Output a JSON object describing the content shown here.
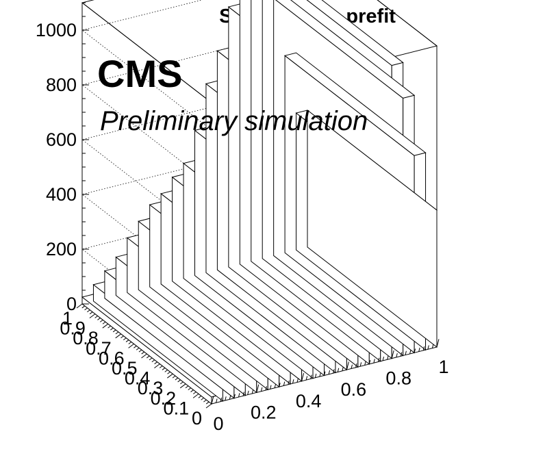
{
  "chart_data": {
    "type": "bar3d",
    "title": "Signal, pass, prefit",
    "annotations": {
      "experiment": "CMS",
      "status": "Preliminary simulation"
    },
    "x_axis": {
      "range": [
        0,
        1
      ],
      "tick_labels": [
        "0",
        "0.2",
        "0.4",
        "0.6",
        "0.8",
        "1"
      ]
    },
    "y_axis": {
      "range": [
        0,
        1
      ],
      "tick_labels": [
        "0",
        "0.1",
        "0.2",
        "0.3",
        "0.4",
        "0.5",
        "0.6",
        "0.7",
        "0.8",
        "0.9",
        "1"
      ]
    },
    "z_axis": {
      "range": [
        0,
        1100
      ],
      "tick_labels": [
        "0",
        "200",
        "400",
        "600",
        "800",
        "1000"
      ]
    },
    "grid": true,
    "x_bins": 20,
    "y_bins": 1,
    "values": [
      25,
      60,
      100,
      140,
      200,
      250,
      300,
      330,
      380,
      420,
      530,
      690,
      800,
      950,
      1060,
      1100,
      1070,
      940,
      720,
      500
    ]
  }
}
